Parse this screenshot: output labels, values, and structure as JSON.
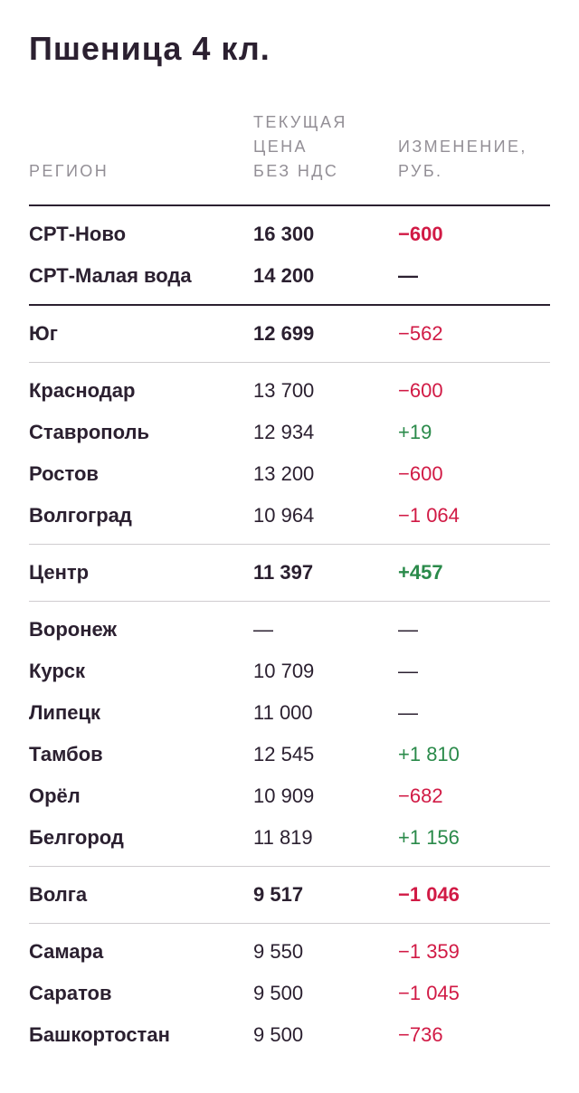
{
  "title": "Пшеница 4 кл.",
  "columns": {
    "region": "РЕГИОН",
    "price_line1": "ТЕКУЩАЯ",
    "price_line2": "ЦЕНА",
    "price_line3": "БЕЗ НДС",
    "change_line1": "ИЗМЕНЕНИЕ,",
    "change_line2": "РУБ."
  },
  "groups": [
    {
      "separator_before": "dark",
      "rows": [
        {
          "region": "СРТ-Ново",
          "price": "16 300",
          "change": "−600",
          "trend": "neg",
          "emphasis": true
        },
        {
          "region": "СРТ-Малая вода",
          "price": "14 200",
          "change": "—",
          "trend": "none",
          "emphasis": true
        }
      ]
    },
    {
      "separator_before": "dark",
      "rows": [
        {
          "region": "Юг",
          "price": "12 699",
          "change": "−562",
          "trend": "neg",
          "emphasis": "price"
        }
      ]
    },
    {
      "separator_before": "light",
      "rows": [
        {
          "region": "Краснодар",
          "price": "13 700",
          "change": "−600",
          "trend": "neg",
          "emphasis": false
        },
        {
          "region": "Ставрополь",
          "price": "12 934",
          "change": "+19",
          "trend": "pos",
          "emphasis": false
        },
        {
          "region": "Ростов",
          "price": "13 200",
          "change": "−600",
          "trend": "neg",
          "emphasis": false
        },
        {
          "region": "Волгоград",
          "price": "10 964",
          "change": "−1 064",
          "trend": "neg",
          "emphasis": false
        }
      ]
    },
    {
      "separator_before": "light",
      "rows": [
        {
          "region": "Центр",
          "price": "11 397",
          "change": "+457",
          "trend": "pos",
          "emphasis": true
        }
      ]
    },
    {
      "separator_before": "light",
      "rows": [
        {
          "region": "Воронеж",
          "price": "—",
          "change": "—",
          "trend": "none",
          "emphasis": false
        },
        {
          "region": "Курск",
          "price": "10 709",
          "change": "—",
          "trend": "none",
          "emphasis": false
        },
        {
          "region": "Липецк",
          "price": "11 000",
          "change": "—",
          "trend": "none",
          "emphasis": false
        },
        {
          "region": "Тамбов",
          "price": "12 545",
          "change": "+1 810",
          "trend": "pos",
          "emphasis": false
        },
        {
          "region": "Орёл",
          "price": "10 909",
          "change": "−682",
          "trend": "neg",
          "emphasis": false
        },
        {
          "region": "Белгород",
          "price": "11 819",
          "change": "+1 156",
          "trend": "pos",
          "emphasis": false
        }
      ]
    },
    {
      "separator_before": "light",
      "rows": [
        {
          "region": "Волга",
          "price": "9 517",
          "change": "−1 046",
          "trend": "neg",
          "emphasis": true
        }
      ]
    },
    {
      "separator_before": "light",
      "rows": [
        {
          "region": "Самара",
          "price": "9 550",
          "change": "−1 359",
          "trend": "neg",
          "emphasis": false
        },
        {
          "region": "Саратов",
          "price": "9 500",
          "change": "−1 045",
          "trend": "neg",
          "emphasis": false
        },
        {
          "region": "Башкортостан",
          "price": "9 500",
          "change": "−736",
          "trend": "neg",
          "emphasis": false
        }
      ]
    }
  ],
  "colors": {
    "negative": "#d11a45",
    "positive": "#2a8a4a",
    "text": "#2b2030",
    "header": "#938f96"
  }
}
